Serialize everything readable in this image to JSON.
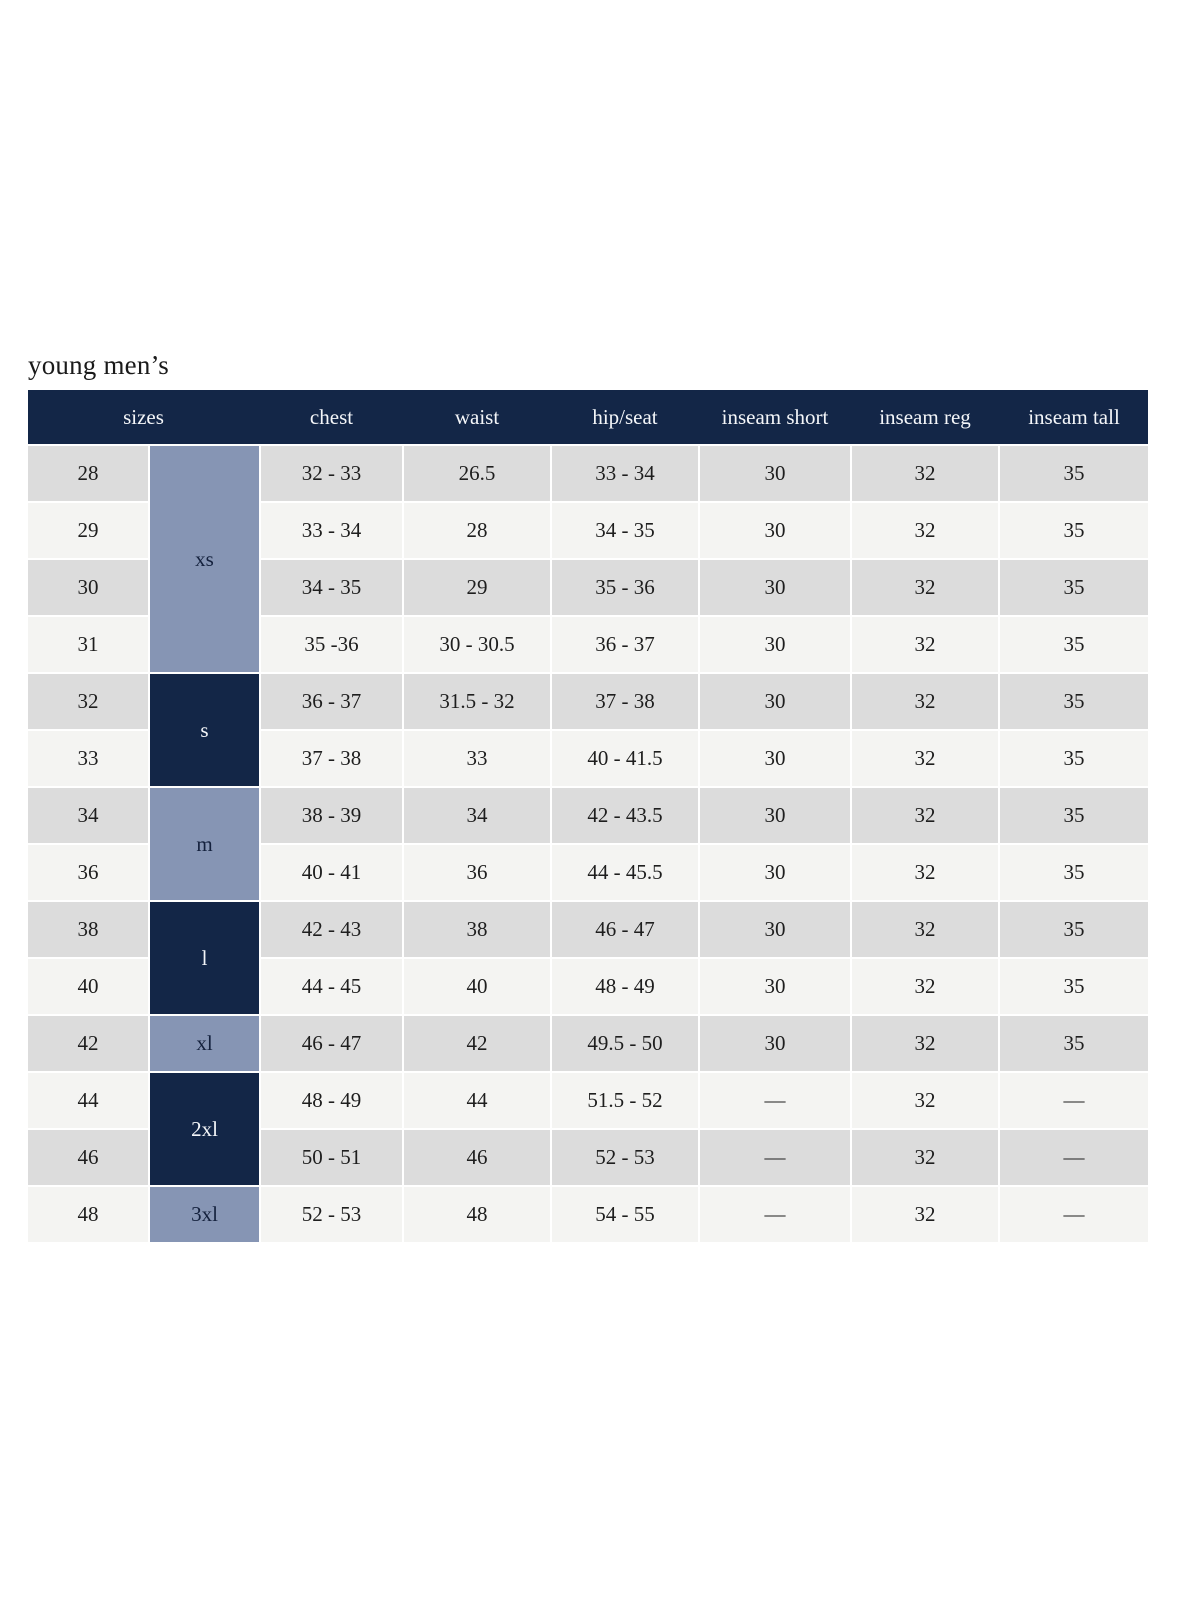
{
  "page": {
    "title": "young men’s"
  },
  "colors": {
    "header_navy": "#132647",
    "group_dark_navy": "#132647",
    "group_blue_gray": "#8695b4",
    "row_gray": "#dcdcdc",
    "row_light": "#f4f4f2",
    "header_text": "#f4f6f9",
    "body_text": "#1e1e1e"
  },
  "table": {
    "headers": [
      "sizes",
      "chest",
      "waist",
      "hip/seat",
      "inseam short",
      "inseam reg",
      "inseam tall"
    ],
    "groups": [
      {
        "label": "xs",
        "rows": 4,
        "tone": "light"
      },
      {
        "label": "s",
        "rows": 2,
        "tone": "dark"
      },
      {
        "label": "m",
        "rows": 2,
        "tone": "light"
      },
      {
        "label": "l",
        "rows": 2,
        "tone": "dark"
      },
      {
        "label": "xl",
        "rows": 1,
        "tone": "light"
      },
      {
        "label": "2xl",
        "rows": 2,
        "tone": "dark"
      },
      {
        "label": "3xl",
        "rows": 1,
        "tone": "light"
      }
    ],
    "rows": [
      {
        "size": "28",
        "chest": "32 - 33",
        "waist": "26.5",
        "hip": "33 - 34",
        "inseam_short": "30",
        "inseam_reg": "32",
        "inseam_tall": "35"
      },
      {
        "size": "29",
        "chest": "33 - 34",
        "waist": "28",
        "hip": "34 - 35",
        "inseam_short": "30",
        "inseam_reg": "32",
        "inseam_tall": "35"
      },
      {
        "size": "30",
        "chest": "34 - 35",
        "waist": "29",
        "hip": "35 - 36",
        "inseam_short": "30",
        "inseam_reg": "32",
        "inseam_tall": "35"
      },
      {
        "size": "31",
        "chest": "35 -36",
        "waist": "30 - 30.5",
        "hip": "36 - 37",
        "inseam_short": "30",
        "inseam_reg": "32",
        "inseam_tall": "35"
      },
      {
        "size": "32",
        "chest": "36 - 37",
        "waist": "31.5 - 32",
        "hip": "37 - 38",
        "inseam_short": "30",
        "inseam_reg": "32",
        "inseam_tall": "35"
      },
      {
        "size": "33",
        "chest": "37 - 38",
        "waist": "33",
        "hip": "40 - 41.5",
        "inseam_short": "30",
        "inseam_reg": "32",
        "inseam_tall": "35"
      },
      {
        "size": "34",
        "chest": "38 - 39",
        "waist": "34",
        "hip": "42 - 43.5",
        "inseam_short": "30",
        "inseam_reg": "32",
        "inseam_tall": "35"
      },
      {
        "size": "36",
        "chest": "40 - 41",
        "waist": "36",
        "hip": "44 - 45.5",
        "inseam_short": "30",
        "inseam_reg": "32",
        "inseam_tall": "35"
      },
      {
        "size": "38",
        "chest": "42 - 43",
        "waist": "38",
        "hip": "46 - 47",
        "inseam_short": "30",
        "inseam_reg": "32",
        "inseam_tall": "35"
      },
      {
        "size": "40",
        "chest": "44 - 45",
        "waist": "40",
        "hip": "48 - 49",
        "inseam_short": "30",
        "inseam_reg": "32",
        "inseam_tall": "35"
      },
      {
        "size": "42",
        "chest": "46 - 47",
        "waist": "42",
        "hip": "49.5 - 50",
        "inseam_short": "30",
        "inseam_reg": "32",
        "inseam_tall": "35"
      },
      {
        "size": "44",
        "chest": "48 - 49",
        "waist": "44",
        "hip": "51.5 - 52",
        "inseam_short": "—",
        "inseam_reg": "32",
        "inseam_tall": "—"
      },
      {
        "size": "46",
        "chest": "50 - 51",
        "waist": "46",
        "hip": "52 - 53",
        "inseam_short": "—",
        "inseam_reg": "32",
        "inseam_tall": "—"
      },
      {
        "size": "48",
        "chest": "52 - 53",
        "waist": "48",
        "hip": "54 - 55",
        "inseam_short": "—",
        "inseam_reg": "32",
        "inseam_tall": "—"
      }
    ]
  }
}
